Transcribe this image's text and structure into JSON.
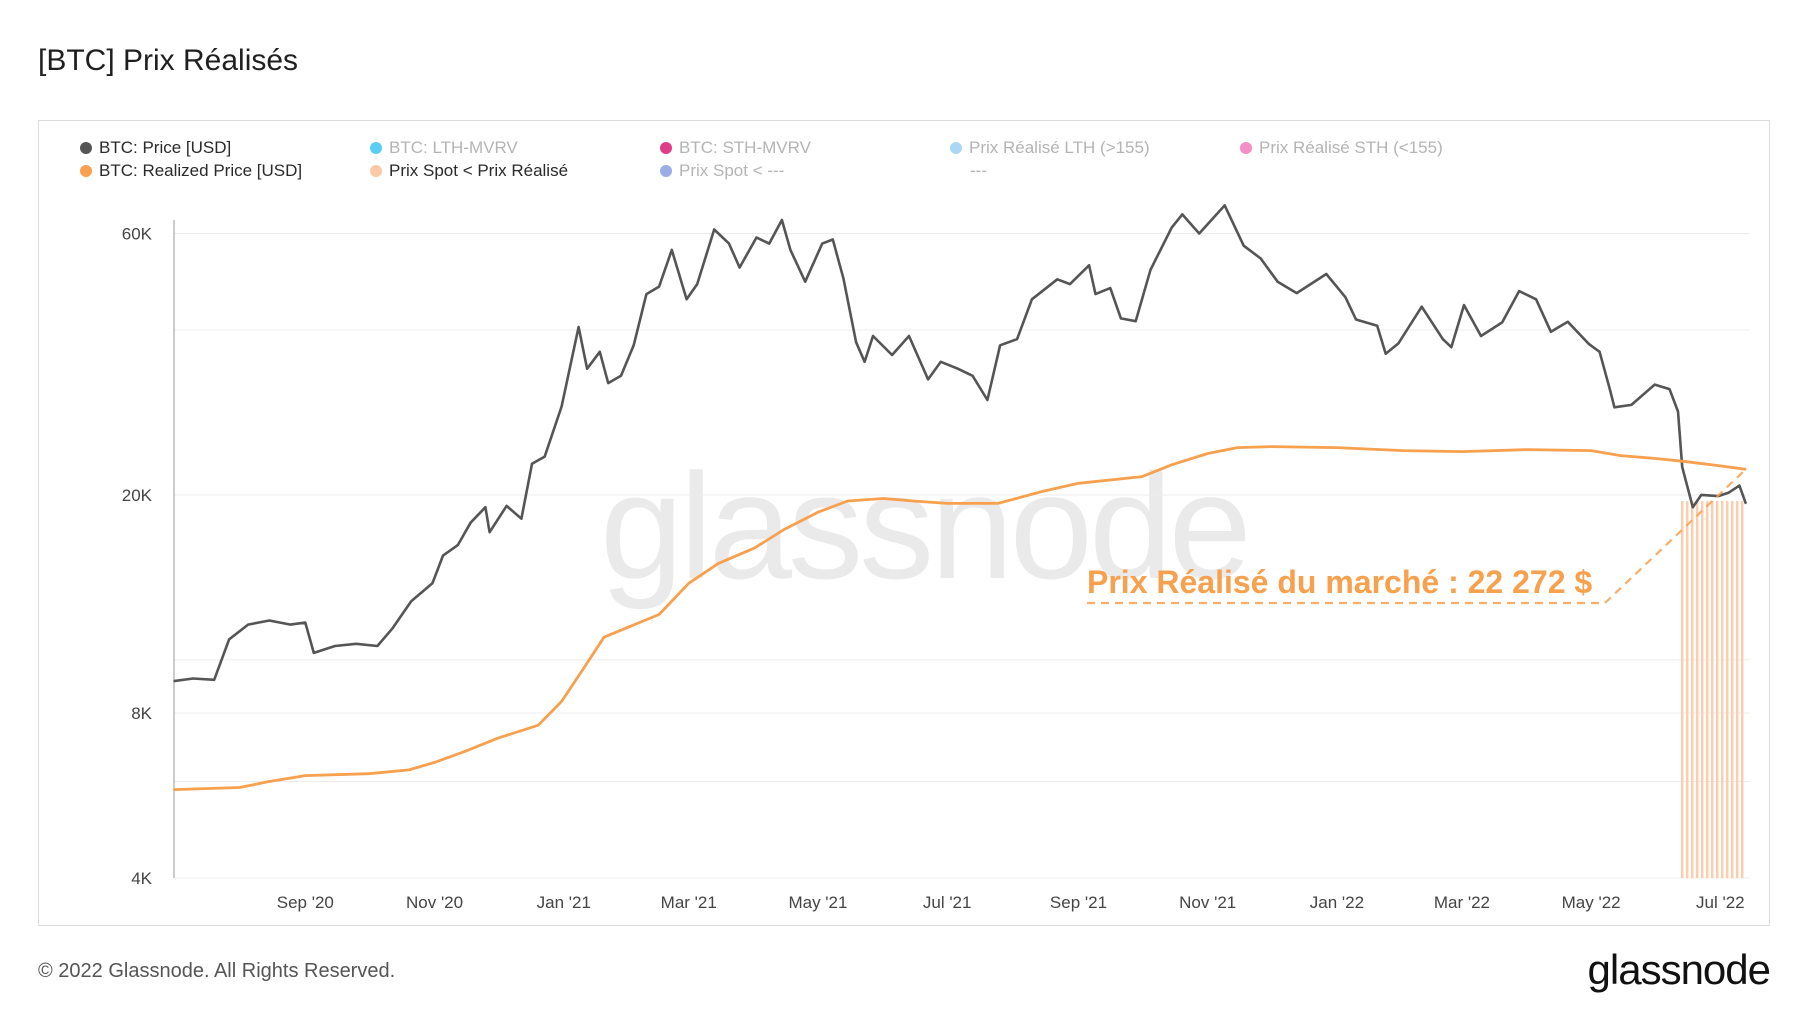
{
  "page": {
    "title": "[BTC] Prix Réalisés",
    "footer_copyright": "© 2022 Glassnode. All Rights Reserved.",
    "footer_logo": "glassnode",
    "watermark": "glassnode"
  },
  "legend": [
    {
      "label": "BTC: Price [USD]",
      "color": "#555555",
      "active": true
    },
    {
      "label": "BTC: LTH-MVRV",
      "color": "#3cc7f5",
      "active": false
    },
    {
      "label": "BTC: STH-MVRV",
      "color": "#d81b72",
      "active": false
    },
    {
      "label": "Prix Réalisé LTH (>155)",
      "color": "#9bd0f2",
      "active": false
    },
    {
      "label": "Prix Réalisé STH (<155)",
      "color": "#f27bbd",
      "active": false
    },
    {
      "label": "BTC: Realized Price [USD]",
      "color": "#f7a04d",
      "active": true
    },
    {
      "label": "Prix Spot < Prix Réalisé",
      "color": "#fbc9a6",
      "active": true
    },
    {
      "label": "Prix Spot < ---",
      "color": "#8a9fe0",
      "active": false
    },
    {
      "label": "---",
      "color": "",
      "active": false
    }
  ],
  "annotation": {
    "text": "Prix Réalisé du marché : 22 272 $",
    "color": "#f7a04d"
  },
  "chart_data": {
    "type": "line",
    "title": "[BTC] Prix Réalisés",
    "y_scale": "log",
    "ylim": [
      4000,
      80000
    ],
    "y_ticks": [
      {
        "value": 4000,
        "label": "4K"
      },
      {
        "value": 8000,
        "label": "8K"
      },
      {
        "value": 20000,
        "label": "20K"
      },
      {
        "value": 60000,
        "label": "60K"
      }
    ],
    "xlim": [
      "2020-07-01",
      "2022-07-15"
    ],
    "x_ticks": [
      {
        "date": "2020-09-01",
        "label": "Sep '20"
      },
      {
        "date": "2020-11-01",
        "label": "Nov '20"
      },
      {
        "date": "2021-01-01",
        "label": "Jan '21"
      },
      {
        "date": "2021-03-01",
        "label": "Mar '21"
      },
      {
        "date": "2021-05-01",
        "label": "May '21"
      },
      {
        "date": "2021-07-01",
        "label": "Jul '21"
      },
      {
        "date": "2021-09-01",
        "label": "Sep '21"
      },
      {
        "date": "2021-11-01",
        "label": "Nov '21"
      },
      {
        "date": "2022-01-01",
        "label": "Jan '22"
      },
      {
        "date": "2022-03-01",
        "label": "Mar '22"
      },
      {
        "date": "2022-05-01",
        "label": "May '22"
      },
      {
        "date": "2022-07-01",
        "label": "Jul '22"
      }
    ],
    "series": [
      {
        "name": "BTC: Price [USD]",
        "color": "#555555",
        "points": [
          [
            "2020-07-01",
            9150
          ],
          [
            "2020-07-10",
            9250
          ],
          [
            "2020-07-20",
            9200
          ],
          [
            "2020-07-27",
            10900
          ],
          [
            "2020-08-05",
            11600
          ],
          [
            "2020-08-15",
            11800
          ],
          [
            "2020-08-25",
            11600
          ],
          [
            "2020-09-01",
            11700
          ],
          [
            "2020-09-05",
            10300
          ],
          [
            "2020-09-15",
            10600
          ],
          [
            "2020-09-25",
            10700
          ],
          [
            "2020-10-05",
            10600
          ],
          [
            "2020-10-12",
            11400
          ],
          [
            "2020-10-21",
            12800
          ],
          [
            "2020-10-31",
            13800
          ],
          [
            "2020-11-05",
            15500
          ],
          [
            "2020-11-12",
            16200
          ],
          [
            "2020-11-18",
            17800
          ],
          [
            "2020-11-25",
            19000
          ],
          [
            "2020-11-27",
            17100
          ],
          [
            "2020-12-05",
            19100
          ],
          [
            "2020-12-12",
            18100
          ],
          [
            "2020-12-17",
            22800
          ],
          [
            "2020-12-23",
            23500
          ],
          [
            "2020-12-31",
            29000
          ],
          [
            "2021-01-08",
            40500
          ],
          [
            "2021-01-12",
            34000
          ],
          [
            "2021-01-18",
            36500
          ],
          [
            "2021-01-22",
            32000
          ],
          [
            "2021-01-28",
            33000
          ],
          [
            "2021-02-03",
            37500
          ],
          [
            "2021-02-09",
            46500
          ],
          [
            "2021-02-15",
            48000
          ],
          [
            "2021-02-21",
            56000
          ],
          [
            "2021-02-28",
            45500
          ],
          [
            "2021-03-05",
            48500
          ],
          [
            "2021-03-13",
            61000
          ],
          [
            "2021-03-20",
            57500
          ],
          [
            "2021-03-25",
            52000
          ],
          [
            "2021-04-02",
            59000
          ],
          [
            "2021-04-08",
            57500
          ],
          [
            "2021-04-14",
            63500
          ],
          [
            "2021-04-18",
            56000
          ],
          [
            "2021-04-25",
            49000
          ],
          [
            "2021-05-03",
            57500
          ],
          [
            "2021-05-08",
            58500
          ],
          [
            "2021-05-13",
            49700
          ],
          [
            "2021-05-19",
            38000
          ],
          [
            "2021-05-23",
            35000
          ],
          [
            "2021-05-27",
            39000
          ],
          [
            "2021-06-05",
            36000
          ],
          [
            "2021-06-13",
            39000
          ],
          [
            "2021-06-22",
            32500
          ],
          [
            "2021-06-28",
            35000
          ],
          [
            "2021-07-06",
            34000
          ],
          [
            "2021-07-13",
            33000
          ],
          [
            "2021-07-20",
            29800
          ],
          [
            "2021-07-26",
            37500
          ],
          [
            "2021-08-03",
            38500
          ],
          [
            "2021-08-10",
            45500
          ],
          [
            "2021-08-22",
            49500
          ],
          [
            "2021-08-28",
            48500
          ],
          [
            "2021-09-06",
            52500
          ],
          [
            "2021-09-09",
            46500
          ],
          [
            "2021-09-16",
            47700
          ],
          [
            "2021-09-21",
            42000
          ],
          [
            "2021-09-28",
            41500
          ],
          [
            "2021-10-05",
            51500
          ],
          [
            "2021-10-15",
            61500
          ],
          [
            "2021-10-20",
            65000
          ],
          [
            "2021-10-28",
            60000
          ],
          [
            "2021-11-09",
            67500
          ],
          [
            "2021-11-18",
            57000
          ],
          [
            "2021-11-26",
            54000
          ],
          [
            "2021-12-04",
            49000
          ],
          [
            "2021-12-13",
            46700
          ],
          [
            "2021-12-27",
            50600
          ],
          [
            "2022-01-05",
            45900
          ],
          [
            "2022-01-10",
            41800
          ],
          [
            "2022-01-20",
            40700
          ],
          [
            "2022-01-24",
            36200
          ],
          [
            "2022-01-30",
            37800
          ],
          [
            "2022-02-10",
            44100
          ],
          [
            "2022-02-20",
            38500
          ],
          [
            "2022-02-24",
            37200
          ],
          [
            "2022-03-02",
            44400
          ],
          [
            "2022-03-10",
            39000
          ],
          [
            "2022-03-20",
            41300
          ],
          [
            "2022-03-28",
            47100
          ],
          [
            "2022-04-05",
            45500
          ],
          [
            "2022-04-12",
            39700
          ],
          [
            "2022-04-20",
            41400
          ],
          [
            "2022-04-30",
            37700
          ],
          [
            "2022-05-05",
            36500
          ],
          [
            "2022-05-10",
            31000
          ],
          [
            "2022-05-12",
            28900
          ],
          [
            "2022-05-20",
            29200
          ],
          [
            "2022-05-31",
            31800
          ],
          [
            "2022-06-07",
            31200
          ],
          [
            "2022-06-11",
            28400
          ],
          [
            "2022-06-13",
            22500
          ],
          [
            "2022-06-18",
            19000
          ],
          [
            "2022-06-22",
            20000
          ],
          [
            "2022-06-30",
            19900
          ],
          [
            "2022-07-05",
            20200
          ],
          [
            "2022-07-10",
            20800
          ],
          [
            "2022-07-13",
            19300
          ]
        ]
      },
      {
        "name": "BTC: Realized Price [USD]",
        "color": "#f7a04d",
        "points": [
          [
            "2020-07-01",
            5800
          ],
          [
            "2020-08-01",
            5850
          ],
          [
            "2020-08-15",
            6000
          ],
          [
            "2020-09-01",
            6150
          ],
          [
            "2020-10-01",
            6200
          ],
          [
            "2020-10-20",
            6300
          ],
          [
            "2020-11-01",
            6500
          ],
          [
            "2020-11-15",
            6800
          ],
          [
            "2020-12-01",
            7200
          ],
          [
            "2020-12-20",
            7600
          ],
          [
            "2020-12-31",
            8400
          ],
          [
            "2021-01-10",
            9600
          ],
          [
            "2021-01-20",
            11000
          ],
          [
            "2021-02-01",
            11500
          ],
          [
            "2021-02-15",
            12100
          ],
          [
            "2021-03-01",
            13800
          ],
          [
            "2021-03-15",
            15000
          ],
          [
            "2021-04-01",
            16000
          ],
          [
            "2021-04-15",
            17300
          ],
          [
            "2021-05-01",
            18600
          ],
          [
            "2021-05-15",
            19500
          ],
          [
            "2021-06-01",
            19700
          ],
          [
            "2021-06-15",
            19500
          ],
          [
            "2021-07-01",
            19300
          ],
          [
            "2021-07-25",
            19300
          ],
          [
            "2021-08-15",
            20300
          ],
          [
            "2021-09-01",
            21000
          ],
          [
            "2021-10-01",
            21600
          ],
          [
            "2021-10-15",
            22700
          ],
          [
            "2021-11-01",
            23800
          ],
          [
            "2021-11-15",
            24400
          ],
          [
            "2021-12-01",
            24500
          ],
          [
            "2022-01-01",
            24400
          ],
          [
            "2022-02-01",
            24100
          ],
          [
            "2022-03-01",
            24000
          ],
          [
            "2022-04-01",
            24200
          ],
          [
            "2022-05-01",
            24100
          ],
          [
            "2022-05-15",
            23600
          ],
          [
            "2022-06-01",
            23300
          ],
          [
            "2022-06-15",
            23000
          ],
          [
            "2022-07-01",
            22600
          ],
          [
            "2022-07-13",
            22272
          ]
        ]
      }
    ],
    "shaded_region": {
      "name": "Prix Spot < Prix Réalisé",
      "color": "#fbc9a6",
      "start": "2022-06-13",
      "end": "2022-07-13"
    }
  }
}
